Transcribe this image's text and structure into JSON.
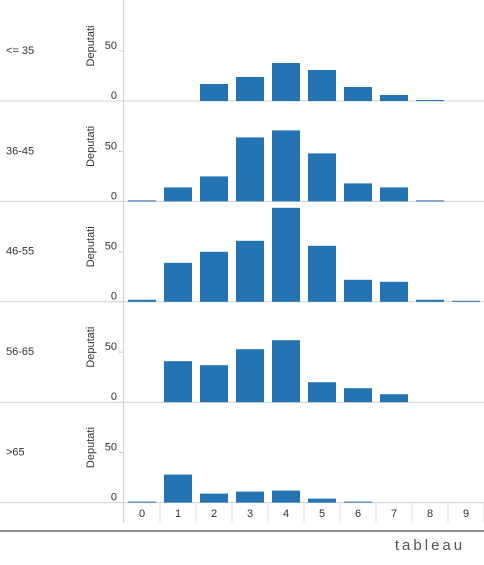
{
  "chart_data": {
    "type": "bar",
    "y_label": "Deputati",
    "categories": [
      "0",
      "1",
      "2",
      "3",
      "4",
      "5",
      "6",
      "7",
      "8",
      "9"
    ],
    "panels": [
      {
        "name": "<= 35",
        "values": [
          0,
          0,
          17,
          24,
          38,
          31,
          14,
          6,
          1,
          0
        ]
      },
      {
        "name": "36-45",
        "values": [
          1,
          14,
          25,
          64,
          71,
          48,
          18,
          14,
          1,
          0
        ]
      },
      {
        "name": "46-55",
        "values": [
          2,
          39,
          50,
          61,
          94,
          56,
          22,
          20,
          2,
          1
        ]
      },
      {
        "name": "56-65",
        "values": [
          0,
          41,
          37,
          53,
          62,
          20,
          14,
          8,
          0,
          0
        ]
      },
      {
        "name": ">65",
        "values": [
          1,
          28,
          9,
          11,
          12,
          4,
          1,
          0,
          0,
          0
        ]
      }
    ],
    "color": "#2474b4",
    "ylim": [
      0,
      100
    ],
    "yticks": [
      0,
      50
    ]
  },
  "logo": "tableau"
}
